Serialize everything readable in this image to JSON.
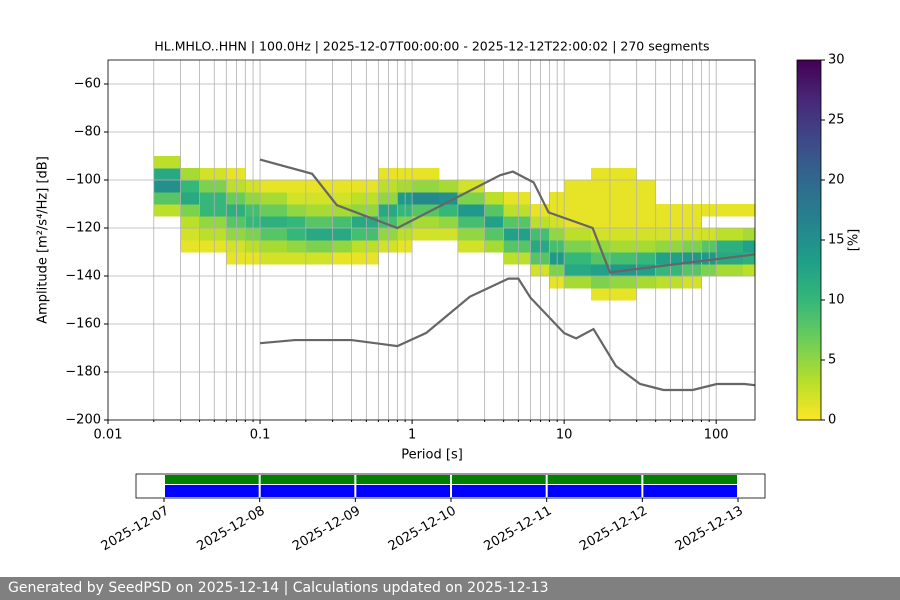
{
  "chart_data": [
    {
      "type": "ppsd",
      "title": "HL.MHLO..HHN | 100.0Hz | 2025-12-07T00:00:00 - 2025-12-12T22:00:02 | 270 segments",
      "xlabel": "Period [s]",
      "ylabel": "Amplitude [m²/s⁴/Hz] [dB]",
      "xscale": "log",
      "xlim": [
        0.01,
        180
      ],
      "ylim": [
        -200,
        -50
      ],
      "xticks": [
        0.01,
        0.1,
        1,
        10,
        100
      ],
      "xminor": [
        0.02,
        0.03,
        0.04,
        0.05,
        0.06,
        0.07,
        0.08,
        0.09,
        0.2,
        0.3,
        0.4,
        0.5,
        0.6,
        0.7,
        0.8,
        0.9,
        2,
        3,
        4,
        5,
        6,
        7,
        8,
        9,
        20,
        30,
        40,
        50,
        60,
        70,
        80,
        90
      ],
      "yticks": [
        {
          "value": -200,
          "label": "−200"
        },
        {
          "value": -180,
          "label": "−180"
        },
        {
          "value": -160,
          "label": "−160"
        },
        {
          "value": -140,
          "label": "−140"
        },
        {
          "value": -120,
          "label": "−120"
        },
        {
          "value": -100,
          "label": "−100"
        },
        {
          "value": -80,
          "label": "−80"
        },
        {
          "value": -60,
          "label": "−60"
        }
      ],
      "grid": true,
      "heatmap": {
        "colormap": "viridis_r",
        "clim": [
          0,
          30
        ],
        "cticks": [
          0,
          5,
          10,
          15,
          20,
          25,
          30
        ],
        "clabel": "[%]",
        "x_bins": [
          0.02,
          0.03,
          0.04,
          0.06,
          0.08,
          0.1,
          0.15,
          0.2,
          0.3,
          0.4,
          0.6,
          0.8,
          1,
          1.5,
          2,
          3,
          4,
          6,
          8,
          10,
          15,
          20,
          30,
          40,
          60,
          80,
          100,
          150,
          180
        ],
        "y_bins": [
          -150,
          -145,
          -140,
          -135,
          -130,
          -125,
          -120,
          -115,
          -110,
          -105,
          -100,
          -95,
          -90
        ],
        "values": [
          [
            null,
            null,
            null,
            null,
            null,
            null,
            null,
            3,
            8,
            15,
            12,
            3
          ],
          [
            null,
            null,
            null,
            null,
            1,
            2,
            3,
            6,
            12,
            10,
            4,
            null
          ],
          [
            null,
            null,
            null,
            null,
            1,
            3,
            5,
            10,
            10,
            6,
            2,
            null
          ],
          [
            null,
            null,
            null,
            1,
            2,
            5,
            8,
            11,
            7,
            3,
            1,
            null
          ],
          [
            null,
            null,
            null,
            1,
            3,
            6,
            10,
            9,
            5,
            2,
            null,
            null
          ],
          [
            null,
            null,
            null,
            2,
            4,
            8,
            11,
            7,
            4,
            1,
            null,
            null
          ],
          [
            null,
            null,
            null,
            2,
            5,
            10,
            10,
            5,
            2,
            1,
            null,
            null
          ],
          [
            null,
            null,
            null,
            2,
            6,
            12,
            8,
            4,
            2,
            1,
            null,
            null
          ],
          [
            null,
            null,
            null,
            1,
            5,
            12,
            9,
            4,
            2,
            1,
            null,
            null
          ],
          [
            null,
            null,
            null,
            1,
            3,
            9,
            12,
            5,
            3,
            1,
            null,
            null
          ],
          [
            null,
            null,
            null,
            null,
            2,
            5,
            9,
            12,
            5,
            3,
            1,
            null
          ],
          [
            null,
            null,
            null,
            null,
            1,
            3,
            6,
            10,
            14,
            4,
            1,
            null
          ],
          [
            null,
            null,
            null,
            null,
            null,
            2,
            4,
            8,
            16,
            5,
            1,
            null
          ],
          [
            null,
            null,
            null,
            null,
            null,
            2,
            5,
            10,
            15,
            4,
            null,
            null
          ],
          [
            null,
            null,
            null,
            null,
            2,
            5,
            9,
            14,
            6,
            2,
            null,
            null
          ],
          [
            null,
            null,
            null,
            null,
            4,
            8,
            13,
            8,
            3,
            null,
            null,
            null
          ],
          [
            null,
            null,
            null,
            3,
            8,
            13,
            8,
            3,
            1,
            null,
            null,
            null
          ],
          [
            null,
            null,
            2,
            8,
            12,
            9,
            3,
            1,
            null,
            null,
            null,
            null
          ],
          [
            null,
            1,
            6,
            14,
            9,
            5,
            2,
            1,
            1,
            null,
            null,
            null
          ],
          [
            null,
            4,
            12,
            10,
            6,
            3,
            1,
            1,
            1,
            1,
            null,
            null
          ],
          [
            1,
            6,
            13,
            8,
            5,
            2,
            1,
            1,
            1,
            1,
            1,
            null
          ],
          [
            1,
            5,
            14,
            9,
            4,
            2,
            1,
            1,
            1,
            1,
            1,
            null
          ],
          [
            null,
            4,
            13,
            10,
            4,
            2,
            1,
            1,
            1,
            1,
            null,
            null
          ],
          [
            null,
            3,
            10,
            13,
            5,
            2,
            1,
            1,
            null,
            null,
            null,
            null
          ],
          [
            null,
            2,
            8,
            14,
            6,
            2,
            1,
            1,
            null,
            null,
            null,
            null
          ],
          [
            null,
            null,
            6,
            14,
            8,
            2,
            null,
            1,
            null,
            null,
            null,
            null
          ],
          [
            null,
            null,
            4,
            12,
            11,
            3,
            null,
            1,
            null,
            null,
            null,
            null
          ],
          [
            null,
            null,
            3,
            11,
            13,
            4,
            null,
            1,
            null,
            null,
            null,
            null
          ]
        ]
      },
      "series": [
        {
          "color": "#666666",
          "x": [
            0.1,
            0.22,
            0.32,
            0.8,
            3.8,
            4.6,
            6.3,
            7.9,
            15.4,
            20,
            180
          ],
          "values": [
            -91.5,
            -97.4,
            -110.5,
            -120,
            -98,
            -96.5,
            -101,
            -113.5,
            -120,
            -138.5,
            -131
          ]
        },
        {
          "color": "#666666",
          "x": [
            0.1,
            0.17,
            0.4,
            0.8,
            1.24,
            2.4,
            4.3,
            5,
            6,
            10,
            12,
            15.6,
            21.9,
            31.6,
            45,
            70,
            101,
            154,
            180
          ],
          "values": [
            -168,
            -166.7,
            -166.7,
            -169.2,
            -163.7,
            -148.6,
            -141.1,
            -141.1,
            -149,
            -163.8,
            -166,
            -162.1,
            -177.5,
            -185,
            -187.5,
            -187.5,
            -185,
            -185,
            -185.5
          ]
        }
      ]
    },
    {
      "type": "timeline",
      "dates": [
        "2025-12-07",
        "2025-12-08",
        "2025-12-09",
        "2025-12-10",
        "2025-12-11",
        "2025-12-12",
        "2025-12-13"
      ],
      "colors": [
        "#008000",
        "#0000ff"
      ]
    }
  ],
  "footer": "Generated by SeedPSD on 2025-12-14 | Calculations updated on 2025-12-13"
}
